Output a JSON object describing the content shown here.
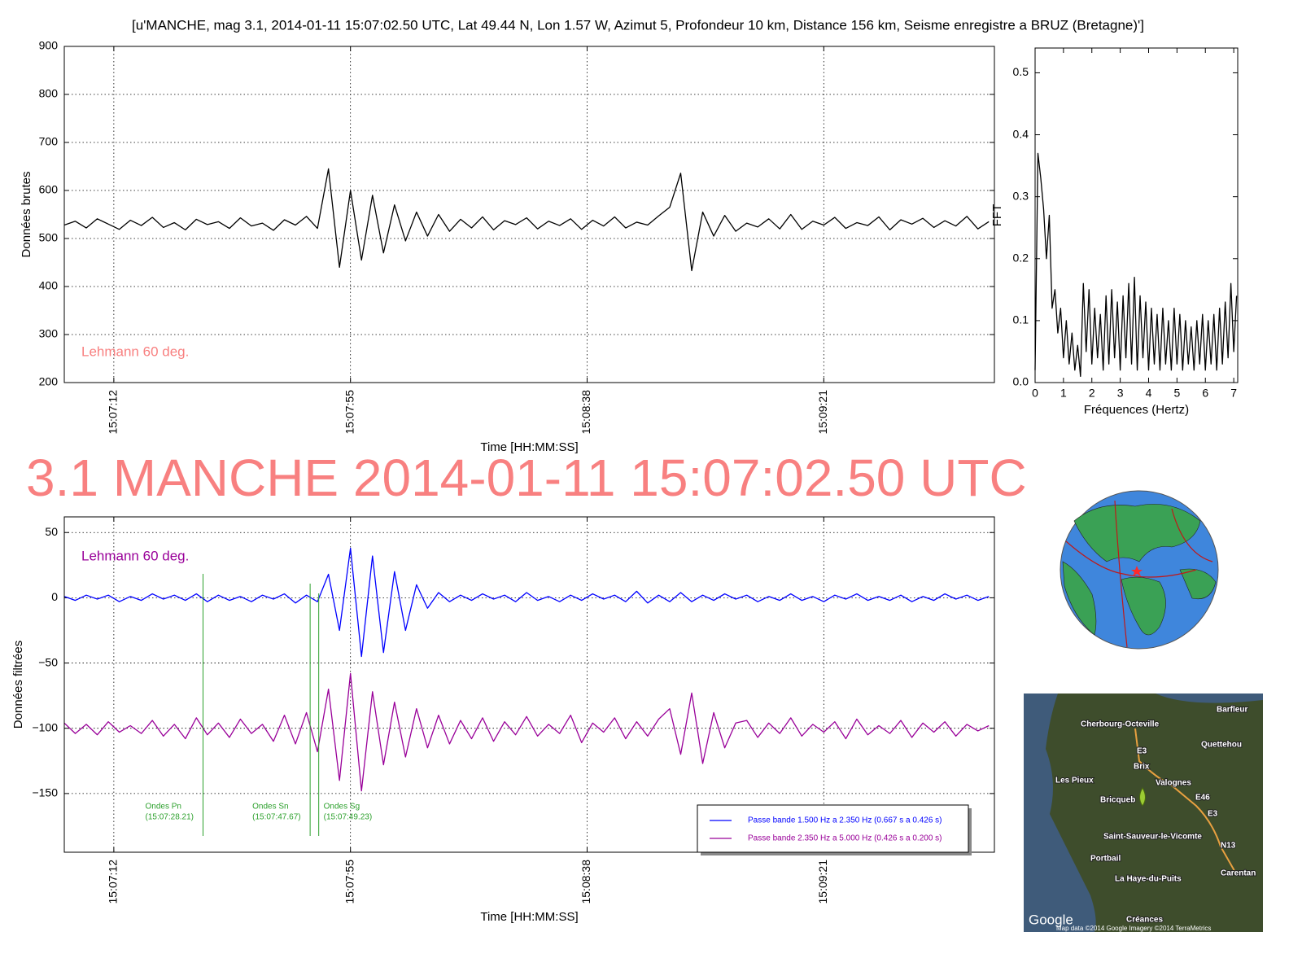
{
  "title": "[u'MANCHE, mag 3.1, 2014-01-11 15:07:02.50 UTC, Lat 49.44 N, Lon 1.57 W, Azimut 5, Profondeur 10 km, Distance 156 km, Seisme enregistre a BRUZ (Bretagne)']",
  "headline": "3.1 MANCHE 2014-01-11 15:07:02.50 UTC",
  "chart_data": [
    {
      "type": "line",
      "ylabel": "Données brutes",
      "xlabel": "Time [HH:MM:SS]",
      "grid": true,
      "xtick_rotation": 90,
      "note": "Lehmann 60 deg.",
      "note_color": "#f88080",
      "note_corner": "lower left",
      "xlim": [
        "15:07:03",
        "15:09:52"
      ],
      "xticks": [
        "15:07:12",
        "15:07:55",
        "15:08:38",
        "15:09:21"
      ],
      "ylim": [
        200,
        900
      ],
      "yticks": [
        200,
        300,
        400,
        500,
        600,
        700,
        800,
        900
      ],
      "x": [
        "15:07:03",
        "15:07:05",
        "15:07:07",
        "15:07:09",
        "15:07:11",
        "15:07:13",
        "15:07:15",
        "15:07:17",
        "15:07:19",
        "15:07:21",
        "15:07:23",
        "15:07:25",
        "15:07:27",
        "15:07:29",
        "15:07:31",
        "15:07:33",
        "15:07:35",
        "15:07:37",
        "15:07:39",
        "15:07:41",
        "15:07:43",
        "15:07:45",
        "15:07:47",
        "15:07:49",
        "15:07:51",
        "15:07:53",
        "15:07:55",
        "15:07:57",
        "15:07:59",
        "15:08:01",
        "15:08:03",
        "15:08:05",
        "15:08:07",
        "15:08:09",
        "15:08:11",
        "15:08:13",
        "15:08:15",
        "15:08:17",
        "15:08:19",
        "15:08:21",
        "15:08:23",
        "15:08:25",
        "15:08:27",
        "15:08:29",
        "15:08:31",
        "15:08:33",
        "15:08:35",
        "15:08:37",
        "15:08:39",
        "15:08:41",
        "15:08:43",
        "15:08:45",
        "15:08:47",
        "15:08:49",
        "15:08:51",
        "15:08:53",
        "15:08:55",
        "15:08:57",
        "15:08:59",
        "15:09:01",
        "15:09:03",
        "15:09:05",
        "15:09:07",
        "15:09:09",
        "15:09:11",
        "15:09:13",
        "15:09:15",
        "15:09:17",
        "15:09:19",
        "15:09:21",
        "15:09:23",
        "15:09:25",
        "15:09:27",
        "15:09:29",
        "15:09:31",
        "15:09:33",
        "15:09:35",
        "15:09:37",
        "15:09:39",
        "15:09:41",
        "15:09:43",
        "15:09:45",
        "15:09:47",
        "15:09:49",
        "15:09:51"
      ],
      "color": "#000000",
      "values": [
        528,
        536,
        522,
        541,
        530,
        519,
        538,
        527,
        544,
        523,
        533,
        518,
        540,
        529,
        535,
        521,
        543,
        526,
        532,
        517,
        539,
        528,
        546,
        521,
        645,
        440,
        600,
        455,
        590,
        470,
        570,
        495,
        555,
        505,
        550,
        515,
        540,
        522,
        545,
        518,
        537,
        529,
        543,
        520,
        536,
        527,
        541,
        519,
        538,
        526,
        545,
        522,
        534,
        528,
        547,
        565,
        636,
        433,
        555,
        505,
        548,
        515,
        532,
        524,
        541,
        520,
        550,
        519,
        536,
        528,
        544,
        521,
        533,
        527,
        545,
        518,
        539,
        530,
        542,
        523,
        537,
        526,
        546,
        520,
        535
      ]
    },
    {
      "type": "line",
      "ylabel": "FFT",
      "xlabel": "Fréquences (Hertz)",
      "grid": false,
      "xlim": [
        0,
        7.14
      ],
      "xticks": [
        0,
        1,
        2,
        3,
        4,
        5,
        6,
        7
      ],
      "ylim": [
        0,
        0.54
      ],
      "yticks": [
        {
          "value": 0,
          "label": "0.0"
        },
        0.1,
        0.2,
        0.3,
        0.4,
        0.5
      ],
      "x": [
        0,
        0.1,
        0.2,
        0.3,
        0.4,
        0.5,
        0.6,
        0.7,
        0.8,
        0.9,
        1.0,
        1.1,
        1.2,
        1.3,
        1.4,
        1.5,
        1.6,
        1.7,
        1.8,
        1.9,
        2.0,
        2.1,
        2.2,
        2.3,
        2.4,
        2.5,
        2.6,
        2.7,
        2.8,
        2.9,
        3.0,
        3.1,
        3.2,
        3.3,
        3.4,
        3.5,
        3.6,
        3.7,
        3.8,
        3.9,
        4.0,
        4.1,
        4.2,
        4.3,
        4.4,
        4.5,
        4.6,
        4.7,
        4.8,
        4.9,
        5.0,
        5.1,
        5.2,
        5.3,
        5.4,
        5.5,
        5.6,
        5.7,
        5.8,
        5.9,
        6.0,
        6.1,
        6.2,
        6.3,
        6.4,
        6.5,
        6.6,
        6.7,
        6.8,
        6.9,
        7.0,
        7.1
      ],
      "color": "#000000",
      "values": [
        0.02,
        0.37,
        0.33,
        0.28,
        0.2,
        0.27,
        0.12,
        0.15,
        0.08,
        0.12,
        0.04,
        0.1,
        0.03,
        0.08,
        0.02,
        0.06,
        0.01,
        0.16,
        0.05,
        0.15,
        0.03,
        0.12,
        0.04,
        0.11,
        0.02,
        0.14,
        0.03,
        0.15,
        0.04,
        0.13,
        0.02,
        0.14,
        0.04,
        0.16,
        0.03,
        0.17,
        0.02,
        0.14,
        0.04,
        0.13,
        0.02,
        0.12,
        0.03,
        0.11,
        0.02,
        0.12,
        0.03,
        0.1,
        0.02,
        0.12,
        0.03,
        0.11,
        0.02,
        0.1,
        0.03,
        0.09,
        0.02,
        0.1,
        0.03,
        0.11,
        0.02,
        0.1,
        0.03,
        0.11,
        0.02,
        0.12,
        0.03,
        0.13,
        0.04,
        0.16,
        0.05,
        0.14
      ]
    },
    {
      "type": "line",
      "ylabel": "Données filtrées",
      "xlabel": "Time [HH:MM:SS]",
      "grid": true,
      "xtick_rotation": 90,
      "note": "Lehmann 60 deg.",
      "note_color": "#990099",
      "note_corner": "upper left",
      "legend": "lower right",
      "xlim": [
        "15:07:03",
        "15:09:52"
      ],
      "xticks": [
        "15:07:12",
        "15:07:55",
        "15:08:38",
        "15:09:21"
      ],
      "ylim": [
        -195,
        62
      ],
      "yticks": [
        {
          "value": -150,
          "label": "−150"
        },
        {
          "value": -100,
          "label": "−100"
        },
        {
          "value": -50,
          "label": "−50"
        },
        0,
        50
      ],
      "annotations": [
        {
          "x": "15:07:28.21",
          "label": "Ondes Pn",
          "time_label": "(15:07:28.21)",
          "color": "#2ca02c"
        },
        {
          "x": "15:07:47.67",
          "label": "Ondes Sn",
          "time_label": "(15:07:47.67)",
          "color": "#2ca02c"
        },
        {
          "x": "15:07:49.23",
          "label": "Ondes Sg",
          "time_label": "(15:07:49.23)",
          "color": "#2ca02c"
        }
      ],
      "x": [
        "15:07:03",
        "15:07:05",
        "15:07:07",
        "15:07:09",
        "15:07:11",
        "15:07:13",
        "15:07:15",
        "15:07:17",
        "15:07:19",
        "15:07:21",
        "15:07:23",
        "15:07:25",
        "15:07:27",
        "15:07:29",
        "15:07:31",
        "15:07:33",
        "15:07:35",
        "15:07:37",
        "15:07:39",
        "15:07:41",
        "15:07:43",
        "15:07:45",
        "15:07:47",
        "15:07:49",
        "15:07:51",
        "15:07:53",
        "15:07:55",
        "15:07:57",
        "15:07:59",
        "15:08:01",
        "15:08:03",
        "15:08:05",
        "15:08:07",
        "15:08:09",
        "15:08:11",
        "15:08:13",
        "15:08:15",
        "15:08:17",
        "15:08:19",
        "15:08:21",
        "15:08:23",
        "15:08:25",
        "15:08:27",
        "15:08:29",
        "15:08:31",
        "15:08:33",
        "15:08:35",
        "15:08:37",
        "15:08:39",
        "15:08:41",
        "15:08:43",
        "15:08:45",
        "15:08:47",
        "15:08:49",
        "15:08:51",
        "15:08:53",
        "15:08:55",
        "15:08:57",
        "15:08:59",
        "15:09:01",
        "15:09:03",
        "15:09:05",
        "15:09:07",
        "15:09:09",
        "15:09:11",
        "15:09:13",
        "15:09:15",
        "15:09:17",
        "15:09:19",
        "15:09:21",
        "15:09:23",
        "15:09:25",
        "15:09:27",
        "15:09:29",
        "15:09:31",
        "15:09:33",
        "15:09:35",
        "15:09:37",
        "15:09:39",
        "15:09:41",
        "15:09:43",
        "15:09:45",
        "15:09:47",
        "15:09:49",
        "15:09:51"
      ],
      "series": [
        {
          "name": "Passe bande 1.500 Hz a 2.350 Hz (0.667 s a 0.426 s)",
          "color": "#0000ff",
          "values": [
            1,
            -2,
            2,
            -1,
            2,
            -3,
            1,
            -2,
            3,
            -1,
            2,
            -2,
            3,
            -3,
            2,
            -2,
            1,
            -3,
            2,
            -1,
            3,
            -4,
            2,
            -3,
            18,
            -25,
            38,
            -45,
            32,
            -42,
            20,
            -25,
            10,
            -8,
            4,
            -3,
            2,
            -2,
            3,
            -1,
            2,
            -3,
            4,
            -2,
            1,
            -3,
            2,
            -2,
            3,
            -1,
            2,
            -3,
            5,
            -4,
            2,
            -3,
            4,
            -3,
            2,
            -2,
            3,
            -1,
            2,
            -3,
            1,
            -2,
            3,
            -2,
            1,
            -3,
            2,
            -1,
            3,
            -2,
            1,
            -2,
            2,
            -3,
            1,
            -2,
            3,
            -1,
            2,
            -2,
            1
          ]
        },
        {
          "name": "Passe bande 2.350 Hz a 5.000 Hz (0.426 s a 0.200 s)",
          "color": "#990099",
          "values": [
            -96,
            -104,
            -97,
            -105,
            -95,
            -103,
            -98,
            -104,
            -94,
            -106,
            -97,
            -108,
            -92,
            -105,
            -96,
            -107,
            -93,
            -104,
            -97,
            -110,
            -90,
            -112,
            -88,
            -118,
            -70,
            -140,
            -58,
            -148,
            -72,
            -128,
            -80,
            -122,
            -85,
            -115,
            -90,
            -112,
            -94,
            -108,
            -92,
            -110,
            -95,
            -105,
            -91,
            -106,
            -97,
            -104,
            -90,
            -111,
            -96,
            -103,
            -92,
            -108,
            -95,
            -106,
            -93,
            -85,
            -120,
            -73,
            -127,
            -88,
            -115,
            -96,
            -94,
            -107,
            -96,
            -104,
            -92,
            -106,
            -97,
            -103,
            -95,
            -108,
            -93,
            -105,
            -98,
            -104,
            -94,
            -107,
            -96,
            -103,
            -95,
            -106,
            -97,
            -102,
            -98
          ]
        }
      ]
    }
  ],
  "map": {
    "labels": [
      "Barfleur",
      "Cherbourg-Octeville",
      "Quettehou",
      "E3",
      "Brix",
      "Les Pieux",
      "Valognes",
      "Bricqueb",
      "E46",
      "E3",
      "Saint-Sauveur-le-Vicomte",
      "N13",
      "Portbail",
      "Carentan",
      "La Haye-du-Puits",
      "Créances",
      "Google",
      "Map data ©2014 Google  Imagery ©2014 TerraMetrics"
    ]
  }
}
